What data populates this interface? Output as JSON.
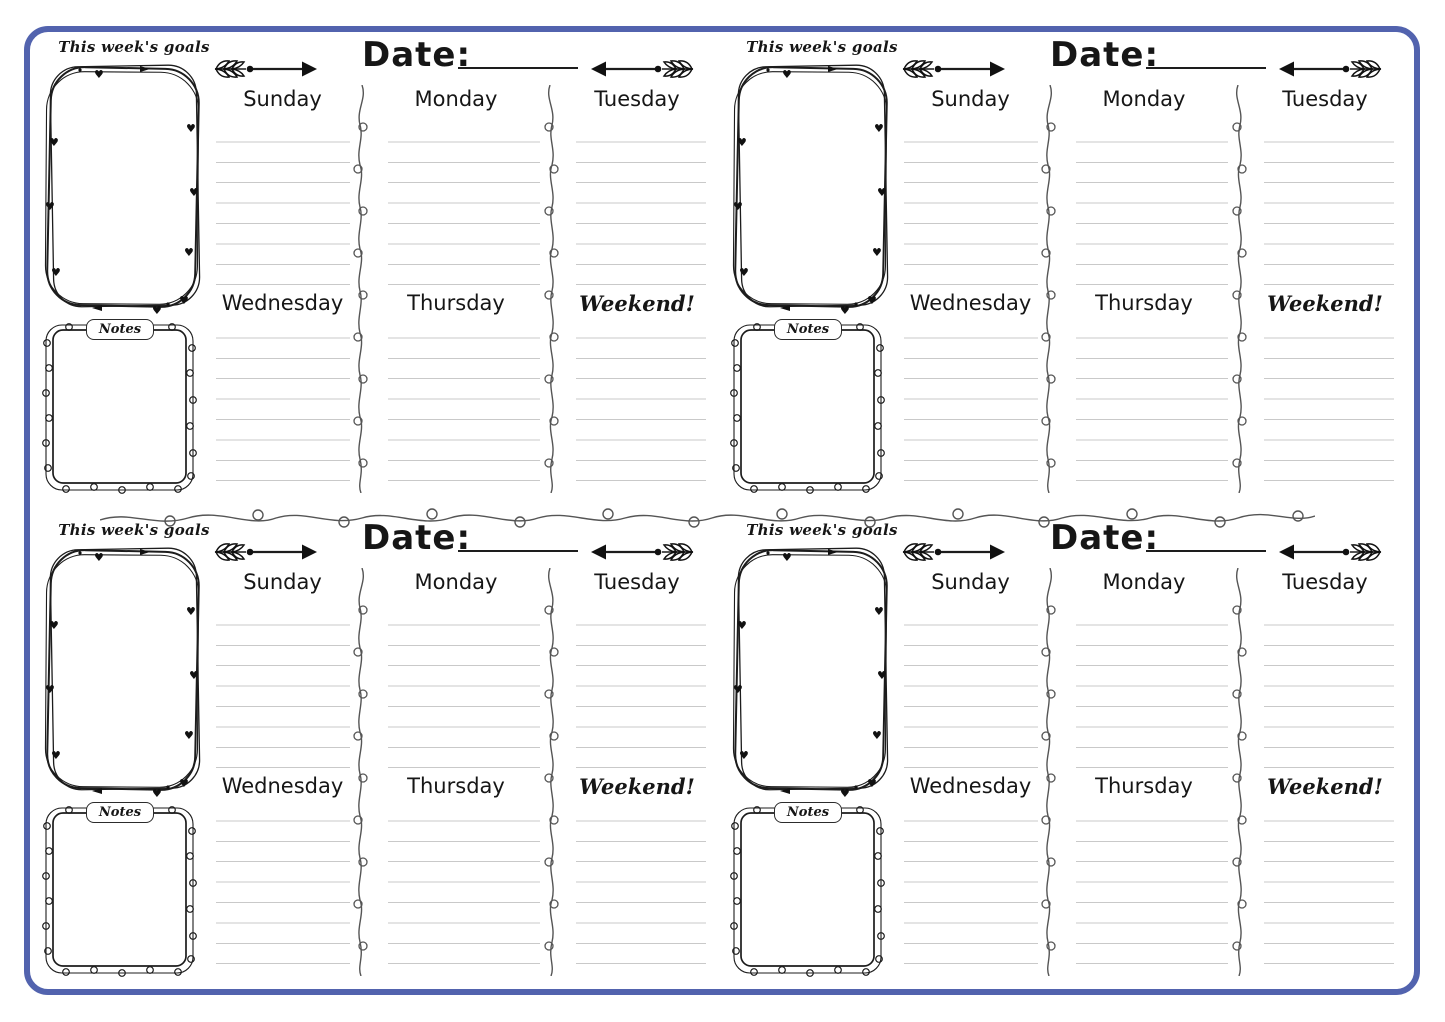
{
  "page": {
    "title": "Weekly planner sheet (4 weeks per page)",
    "background_color": "#ffffff",
    "border_color": "#5263ae",
    "ruled_line_color": "#c9c9c9",
    "ink_color": "#1c1c1c"
  },
  "planner": {
    "goals_label": "This week's goals",
    "notes_label": "Notes",
    "date_label": "Date:",
    "date_value": "",
    "day_labels": {
      "sunday": "Sunday",
      "monday": "Monday",
      "tuesday": "Tuesday",
      "wednesday": "Wednesday",
      "thursday": "Thursday",
      "weekend": "Weekend!"
    },
    "icons": {
      "arrow_right": "arrow-right-with-laurel-fletching",
      "arrow_left": "arrow-left-with-laurel-fletching",
      "goals_frame": "hand-drawn-scribble-frame-with-hearts",
      "notes_frame": "hand-drawn-loop-frame",
      "column_divider": "vertical-loop-squiggle",
      "section_divider": "horizontal-loop-squiggle"
    },
    "quadrants": [
      "top-left",
      "top-right",
      "bottom-left",
      "bottom-right"
    ]
  }
}
